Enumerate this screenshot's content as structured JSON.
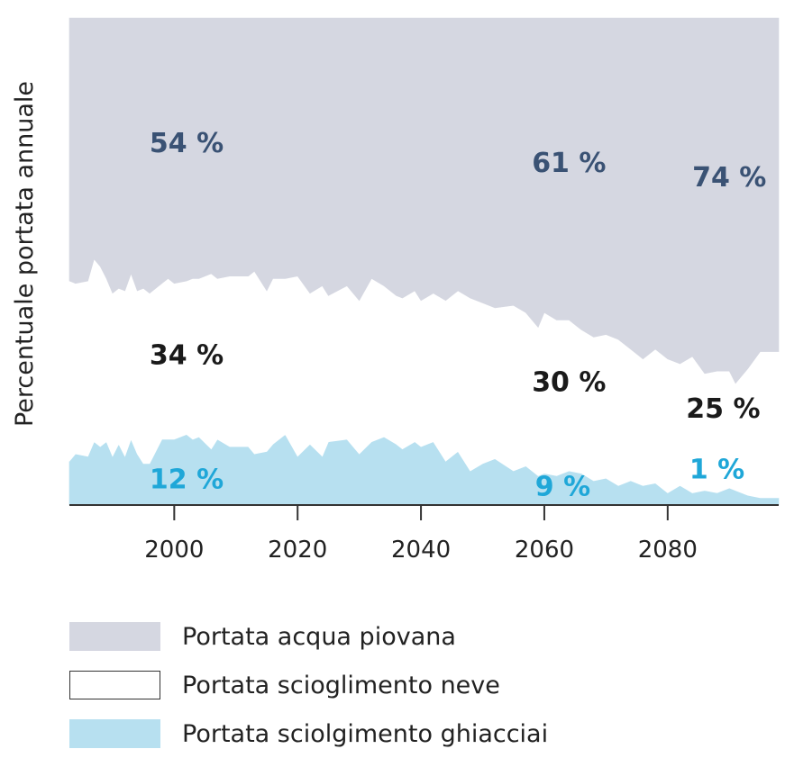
{
  "chart_data": {
    "type": "area",
    "stacked": true,
    "normalized": true,
    "title": "",
    "xlabel": "",
    "ylabel": "Percentuale portata annuale",
    "xlim": [
      1983,
      2098
    ],
    "ylim": [
      0,
      100
    ],
    "x_ticks": [
      2000,
      2020,
      2040,
      2060,
      2080
    ],
    "grid": false,
    "legend_position": "bottom",
    "series": [
      {
        "key": "glacier",
        "name": "Portata sciolgimento ghiacciai",
        "color": "#b7e0f0",
        "annotation_color": "#1fa7d8",
        "x": [
          1983,
          1984,
          1986,
          1987,
          1988,
          1989,
          1990,
          1991,
          1992,
          1993,
          1994,
          1995,
          1996,
          1998,
          1999,
          2000,
          2002,
          2003,
          2004,
          2006,
          2007,
          2009,
          2012,
          2013,
          2015,
          2016,
          2018,
          2020,
          2022,
          2024,
          2025,
          2028,
          2030,
          2032,
          2034,
          2036,
          2037,
          2039,
          2040,
          2042,
          2044,
          2046,
          2048,
          2050,
          2052,
          2055,
          2057,
          2059,
          2060,
          2062,
          2064,
          2066,
          2068,
          2070,
          2072,
          2074,
          2076,
          2078,
          2080,
          2082,
          2084,
          2086,
          2088,
          2090,
          2091,
          2093,
          2095,
          2098
        ],
        "values": [
          9,
          10.5,
          10,
          13,
          12,
          13,
          10,
          12.5,
          10,
          13.5,
          10.5,
          8.5,
          8.5,
          13.5,
          13.5,
          13.5,
          14.5,
          13.5,
          14,
          11.5,
          13.5,
          12,
          12,
          10.5,
          11,
          12.5,
          14.5,
          10,
          12.5,
          10,
          13,
          13.5,
          10.5,
          13,
          14,
          12.5,
          11.5,
          13,
          12,
          13,
          9,
          11,
          7,
          8.5,
          9.5,
          7,
          8,
          6,
          6.5,
          6,
          7,
          6.5,
          5,
          5.5,
          4,
          5,
          4,
          4.5,
          2.5,
          4,
          2.5,
          3,
          2.5,
          3.5,
          3,
          2,
          1.5,
          1.5
        ]
      },
      {
        "key": "snow",
        "name": "Portata scioglimento neve",
        "color": "#ffffff",
        "annotation_color": "#1a1a1a",
        "x": [
          1983,
          1984,
          1986,
          1987,
          1988,
          1989,
          1990,
          1991,
          1992,
          1993,
          1994,
          1995,
          1996,
          1998,
          1999,
          2000,
          2002,
          2003,
          2004,
          2006,
          2007,
          2009,
          2012,
          2013,
          2015,
          2016,
          2018,
          2020,
          2022,
          2024,
          2025,
          2028,
          2030,
          2032,
          2034,
          2036,
          2037,
          2039,
          2040,
          2042,
          2044,
          2046,
          2048,
          2050,
          2052,
          2055,
          2057,
          2059,
          2060,
          2062,
          2064,
          2066,
          2068,
          2070,
          2072,
          2074,
          2076,
          2078,
          2080,
          2082,
          2084,
          2086,
          2088,
          2090,
          2091,
          2093,
          2095,
          2098
        ],
        "values": [
          37,
          35,
          36,
          37.5,
          37,
          33.5,
          33.5,
          32,
          34,
          34,
          33.5,
          36,
          35,
          32,
          33,
          32,
          31.5,
          33,
          32.5,
          36,
          33,
          35,
          35,
          37.5,
          33,
          34,
          32,
          37,
          31,
          35,
          30,
          31.5,
          31.5,
          33.5,
          31,
          30.5,
          31,
          31,
          30,
          30.5,
          33,
          33,
          35.5,
          33,
          31,
          34,
          31.5,
          30.5,
          33,
          32,
          31,
          29.5,
          29.5,
          29.5,
          30,
          27,
          26,
          27.5,
          27.5,
          25,
          28,
          24,
          25,
          24,
          22,
          26,
          30,
          30
        ]
      },
      {
        "key": "rain",
        "name": "Portata acqua piovana",
        "color": "#d5d7e1",
        "annotation_color": "#3a5274",
        "x": [
          1983,
          1984,
          1986,
          1987,
          1988,
          1989,
          1990,
          1991,
          1992,
          1993,
          1994,
          1995,
          1996,
          1998,
          1999,
          2000,
          2002,
          2003,
          2004,
          2006,
          2007,
          2009,
          2012,
          2013,
          2015,
          2016,
          2018,
          2020,
          2022,
          2024,
          2025,
          2028,
          2030,
          2032,
          2034,
          2036,
          2037,
          2039,
          2040,
          2042,
          2044,
          2046,
          2048,
          2050,
          2052,
          2055,
          2057,
          2059,
          2060,
          2062,
          2064,
          2066,
          2068,
          2070,
          2072,
          2074,
          2076,
          2078,
          2080,
          2082,
          2084,
          2086,
          2088,
          2090,
          2091,
          2093,
          2095,
          2098
        ],
        "values": [
          54,
          54.5,
          54,
          49.5,
          51,
          53.5,
          56.5,
          55.5,
          56,
          52.5,
          56,
          55.5,
          56.5,
          54.5,
          53.5,
          54.5,
          54,
          53.5,
          53.5,
          52.5,
          53.5,
          53,
          53,
          52,
          56,
          53.5,
          53.5,
          53,
          56.5,
          55,
          57,
          55,
          58,
          53.5,
          55,
          57,
          57.5,
          56,
          58,
          56.5,
          58,
          56,
          57.5,
          58.5,
          59.5,
          59,
          60.5,
          63.5,
          60.5,
          62,
          62,
          64,
          65.5,
          65,
          66,
          68,
          70,
          68,
          70,
          71,
          69.5,
          73,
          72.5,
          72.5,
          75,
          72,
          68.5,
          68.5
        ]
      }
    ],
    "annotations": [
      {
        "series": "rain",
        "text": "54 %",
        "x": 2002,
        "y": 74
      },
      {
        "series": "rain",
        "text": "61 %",
        "x": 2064,
        "y": 70
      },
      {
        "series": "rain",
        "text": "74 %",
        "x": 2090,
        "y": 67
      },
      {
        "series": "snow",
        "text": "34 %",
        "x": 2002,
        "y": 30.5
      },
      {
        "series": "snow",
        "text": "30 %",
        "x": 2064,
        "y": 25
      },
      {
        "series": "snow",
        "text": "25 %",
        "x": 2089,
        "y": 19.5
      },
      {
        "series": "glacier",
        "text": "12 %",
        "x": 2002,
        "y": 5
      },
      {
        "series": "glacier",
        "text": "9 %",
        "x": 2063,
        "y": 3.5
      },
      {
        "series": "glacier",
        "text": "1 %",
        "x": 2088,
        "y": 7
      }
    ]
  },
  "legend": [
    {
      "label": "Portata acqua piovana",
      "color": "#d5d7e1",
      "outlined": false
    },
    {
      "label": "Portata scioglimento neve",
      "color": "#ffffff",
      "outlined": true
    },
    {
      "label": "Portata sciolgimento ghiacciai",
      "color": "#b7e0f0",
      "outlined": false
    }
  ]
}
